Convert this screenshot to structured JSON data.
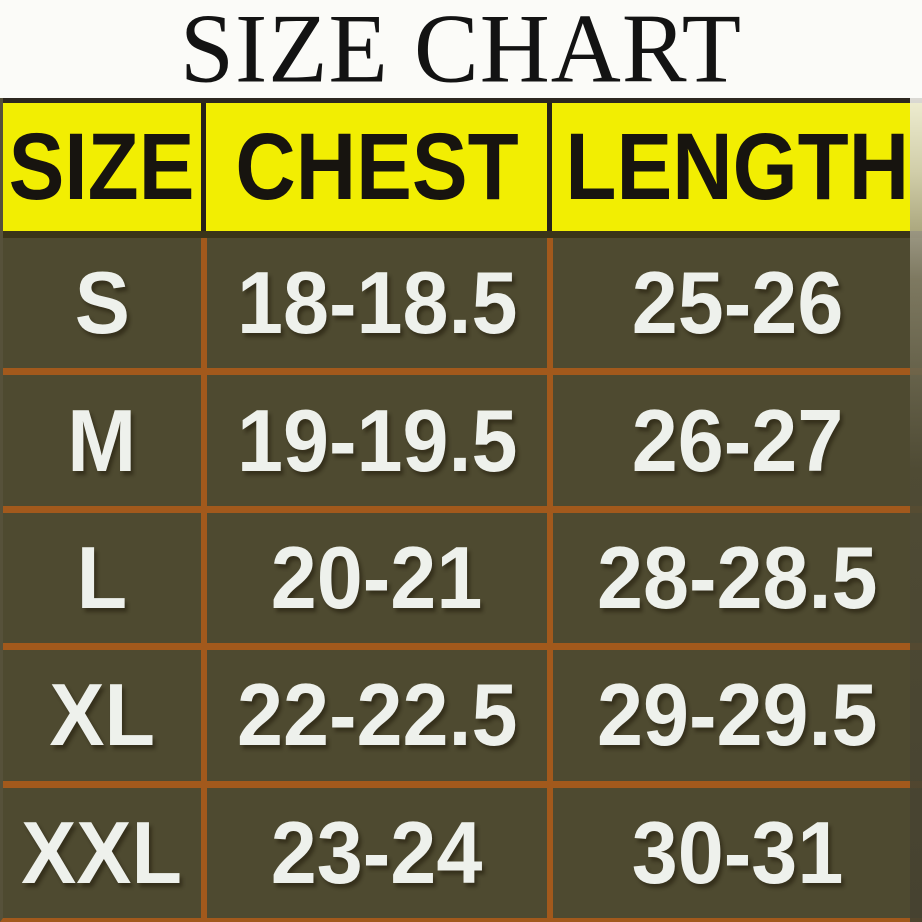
{
  "title": "SIZE CHART",
  "chart_data": {
    "type": "table",
    "title": "SIZE CHART",
    "columns": [
      "SIZE",
      "CHEST",
      "LENGTH"
    ],
    "rows": [
      [
        "S",
        "18-18.5",
        "25-26"
      ],
      [
        "M",
        "19-19.5",
        "26-27"
      ],
      [
        "L",
        "20-21",
        "28-28.5"
      ],
      [
        "XL",
        "22-22.5",
        "29-29.5"
      ],
      [
        "XXL",
        "23-24",
        "30-31"
      ]
    ],
    "units": "inches (implied)",
    "layout_hints": {
      "header_position": "top",
      "grid": "on"
    }
  },
  "colors": {
    "title_bg": "#fbfbf8",
    "title_text": "#131313",
    "header_bg": "#f2ee02",
    "header_text": "#17140f",
    "header_divider": "#262219",
    "body_bg": "#4e4a30",
    "body_text": "#eef1ec",
    "divider_orange": "#a2591c"
  }
}
